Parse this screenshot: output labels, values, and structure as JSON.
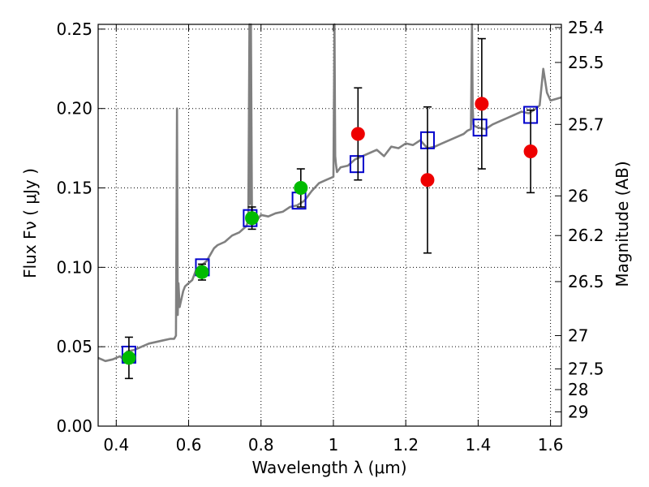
{
  "chart_data": {
    "type": "scatter",
    "xlabel": "Wavelength  λ (μm)",
    "ylabel": "Flux  Fν  ( μJy )",
    "y2label": "Magnitude (AB)",
    "xlim": [
      0.35,
      1.63
    ],
    "ylim": [
      0.0,
      0.253
    ],
    "grid": true,
    "x_ticks": [
      0.4,
      0.6,
      0.8,
      1.0,
      1.2,
      1.4,
      1.6
    ],
    "x_tick_labels": [
      "0.4",
      "0.6",
      "0.8",
      "1",
      "1.2",
      "1.4",
      "1.6"
    ],
    "y_ticks": [
      0.0,
      0.05,
      0.1,
      0.15,
      0.2,
      0.25
    ],
    "y_tick_labels": [
      "0.00",
      "0.05",
      "0.10",
      "0.15",
      "0.20",
      "0.25"
    ],
    "magnitude_ticks": [
      {
        "label": "25.4",
        "flux": 0.251
      },
      {
        "label": "25.5",
        "flux": 0.229
      },
      {
        "label": "25.7",
        "flux": 0.19
      },
      {
        "label": "26",
        "flux": 0.145
      },
      {
        "label": "26.2",
        "flux": 0.12
      },
      {
        "label": "26.5",
        "flux": 0.091
      },
      {
        "label": "27",
        "flux": 0.057
      },
      {
        "label": "27.5",
        "flux": 0.036
      },
      {
        "label": "28",
        "flux": 0.023
      },
      {
        "label": "29",
        "flux": 0.009
      }
    ],
    "series": [
      {
        "style": "line",
        "color": "#808080",
        "x": [
          0.35,
          0.37,
          0.39,
          0.4,
          0.41,
          0.42,
          0.43,
          0.45,
          0.47,
          0.49,
          0.51,
          0.53,
          0.55,
          0.56,
          0.565,
          0.568,
          0.57,
          0.572,
          0.575,
          0.58,
          0.585,
          0.59,
          0.6,
          0.61,
          0.62,
          0.63,
          0.64,
          0.65,
          0.66,
          0.67,
          0.68,
          0.7,
          0.72,
          0.74,
          0.75,
          0.76,
          0.765,
          0.768,
          0.77,
          0.772,
          0.775,
          0.78,
          0.79,
          0.8,
          0.82,
          0.84,
          0.86,
          0.88,
          0.9,
          0.92,
          0.94,
          0.96,
          0.98,
          1.0,
          1.003,
          1.005,
          1.007,
          1.01,
          1.02,
          1.04,
          1.06,
          1.08,
          1.1,
          1.12,
          1.14,
          1.16,
          1.18,
          1.2,
          1.22,
          1.24,
          1.26,
          1.28,
          1.3,
          1.32,
          1.34,
          1.36,
          1.37,
          1.38,
          1.383,
          1.385,
          1.387,
          1.39,
          1.4,
          1.42,
          1.44,
          1.46,
          1.48,
          1.5,
          1.52,
          1.54,
          1.56,
          1.57,
          1.58,
          1.59,
          1.6,
          1.63
        ],
        "values": [
          0.043,
          0.041,
          0.042,
          0.043,
          0.044,
          0.042,
          0.047,
          0.048,
          0.05,
          0.052,
          0.053,
          0.054,
          0.055,
          0.055,
          0.057,
          0.2,
          0.07,
          0.09,
          0.075,
          0.08,
          0.085,
          0.088,
          0.09,
          0.092,
          0.098,
          0.101,
          0.102,
          0.104,
          0.108,
          0.112,
          0.114,
          0.116,
          0.12,
          0.122,
          0.124,
          0.126,
          0.13,
          0.26,
          0.14,
          0.26,
          0.13,
          0.128,
          0.13,
          0.133,
          0.132,
          0.134,
          0.135,
          0.138,
          0.139,
          0.142,
          0.148,
          0.153,
          0.155,
          0.157,
          0.26,
          0.17,
          0.165,
          0.16,
          0.163,
          0.164,
          0.168,
          0.17,
          0.172,
          0.174,
          0.17,
          0.176,
          0.175,
          0.178,
          0.177,
          0.18,
          0.175,
          0.176,
          0.178,
          0.18,
          0.182,
          0.184,
          0.186,
          0.187,
          0.26,
          0.2,
          0.19,
          0.189,
          0.188,
          0.187,
          0.19,
          0.192,
          0.194,
          0.196,
          0.198,
          0.197,
          0.2,
          0.202,
          0.225,
          0.21,
          0.205,
          0.207
        ]
      },
      {
        "style": "open-square",
        "color": "#0000cc",
        "x": [
          0.435,
          0.638,
          0.77,
          0.905,
          1.065,
          1.26,
          1.405,
          1.545
        ],
        "values": [
          0.045,
          0.1,
          0.131,
          0.142,
          0.165,
          0.18,
          0.188,
          0.196
        ]
      },
      {
        "style": "filled-circle",
        "color": "#00bb00",
        "x": [
          0.435,
          0.637,
          0.775,
          0.91
        ],
        "values": [
          0.043,
          0.097,
          0.131,
          0.15
        ],
        "err": [
          0.013,
          0.005,
          0.007,
          0.012
        ]
      },
      {
        "style": "filled-circle",
        "color": "#ee0000",
        "x": [
          1.068,
          1.26,
          1.41,
          1.545
        ],
        "values": [
          0.184,
          0.155,
          0.203,
          0.173
        ],
        "err": [
          0.029,
          0.046,
          0.041,
          0.026
        ]
      }
    ]
  }
}
